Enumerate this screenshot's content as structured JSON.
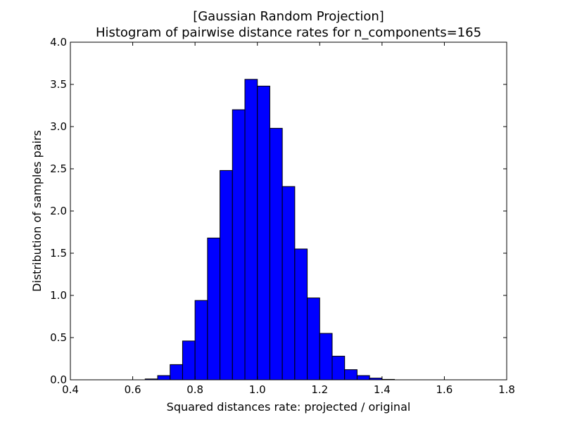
{
  "chart_data": {
    "type": "bar",
    "title": "[Gaussian Random Projection]",
    "subtitle": "Histogram of pairwise distance rates for n_components=165",
    "xlabel": "Squared distances rate: projected / original",
    "ylabel": "Distribution of samples pairs",
    "xlim": [
      0.4,
      1.8
    ],
    "ylim": [
      0.0,
      4.0
    ],
    "xticks": [
      "0.4",
      "0.6",
      "0.8",
      "1.0",
      "1.2",
      "1.4",
      "1.6",
      "1.8"
    ],
    "yticks": [
      "0.0",
      "0.5",
      "1.0",
      "1.5",
      "2.0",
      "2.5",
      "3.0",
      "3.5",
      "4.0"
    ],
    "bin_edges": [
      0.64,
      0.68,
      0.72,
      0.76,
      0.8,
      0.84,
      0.88,
      0.92,
      0.96,
      1.0,
      1.04,
      1.08,
      1.12,
      1.16,
      1.2,
      1.24,
      1.28,
      1.32,
      1.36,
      1.4,
      1.44
    ],
    "values": [
      0.01,
      0.05,
      0.18,
      0.46,
      0.94,
      1.68,
      2.48,
      3.2,
      3.56,
      3.48,
      2.98,
      2.29,
      1.55,
      0.97,
      0.55,
      0.28,
      0.12,
      0.05,
      0.02,
      0.005
    ],
    "grid": false,
    "bar_color": "#0000ff",
    "edge_color": "#000000"
  }
}
